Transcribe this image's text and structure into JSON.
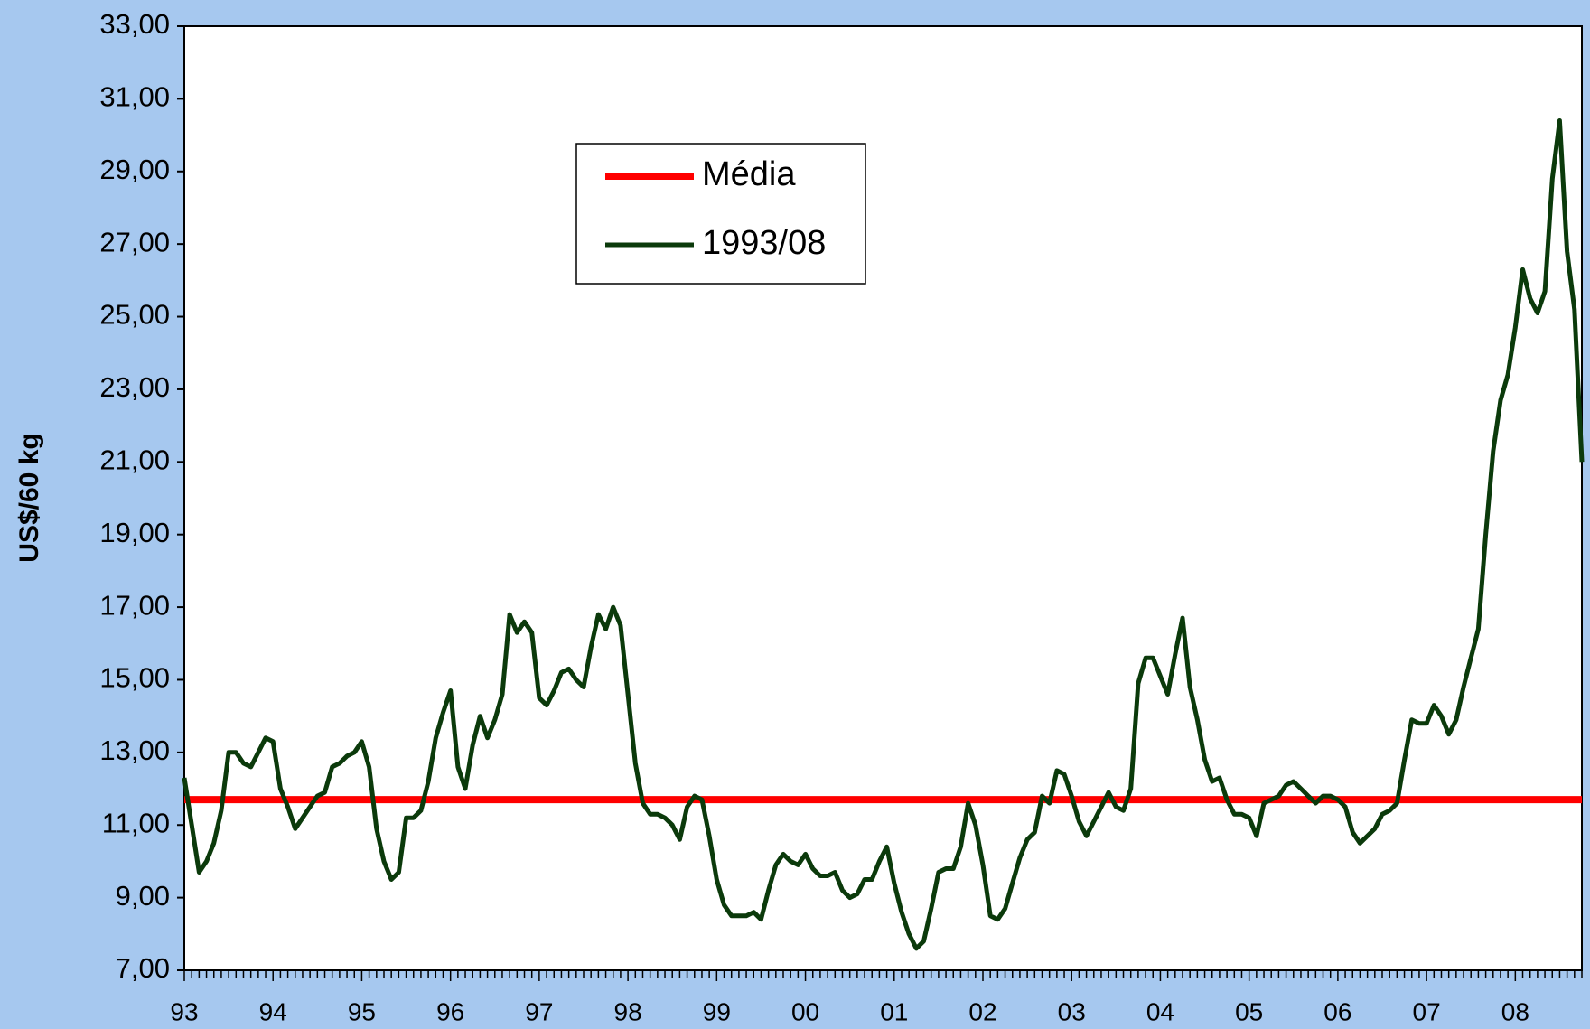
{
  "chart_data": {
    "type": "line",
    "y_label": "US$/60 kg",
    "categories": [
      "93",
      null,
      null,
      null,
      null,
      null,
      null,
      null,
      null,
      null,
      null,
      null,
      "94",
      null,
      null,
      null,
      null,
      null,
      null,
      null,
      null,
      null,
      null,
      null,
      "95",
      null,
      null,
      null,
      null,
      null,
      null,
      null,
      null,
      null,
      null,
      null,
      "96",
      null,
      null,
      null,
      null,
      null,
      null,
      null,
      null,
      null,
      null,
      null,
      "97",
      null,
      null,
      null,
      null,
      null,
      null,
      null,
      null,
      null,
      null,
      null,
      "98",
      null,
      null,
      null,
      null,
      null,
      null,
      null,
      null,
      null,
      null,
      null,
      "99",
      null,
      null,
      null,
      null,
      null,
      null,
      null,
      null,
      null,
      null,
      null,
      "00",
      null,
      null,
      null,
      null,
      null,
      null,
      null,
      null,
      null,
      null,
      null,
      "01",
      null,
      null,
      null,
      null,
      null,
      null,
      null,
      null,
      null,
      null,
      null,
      "02",
      null,
      null,
      null,
      null,
      null,
      null,
      null,
      null,
      null,
      null,
      null,
      "03",
      null,
      null,
      null,
      null,
      null,
      null,
      null,
      null,
      null,
      null,
      null,
      "04",
      null,
      null,
      null,
      null,
      null,
      null,
      null,
      null,
      null,
      null,
      null,
      "05",
      null,
      null,
      null,
      null,
      null,
      null,
      null,
      null,
      null,
      null,
      null,
      "06",
      null,
      null,
      null,
      null,
      null,
      null,
      null,
      null,
      null,
      null,
      null,
      "07",
      null,
      null,
      null,
      null,
      null,
      null,
      null,
      null,
      null,
      null,
      null,
      "08",
      null,
      null,
      null,
      null,
      null,
      null,
      null,
      null,
      null
    ],
    "series": [
      {
        "name": "1993/08",
        "color": "#0b3a0b",
        "values": [
          12.3,
          11.0,
          9.7,
          10.0,
          10.5,
          11.4,
          13.0,
          13.0,
          12.7,
          12.6,
          13.0,
          13.4,
          13.3,
          12.0,
          11.5,
          10.9,
          11.2,
          11.5,
          11.8,
          11.9,
          12.6,
          12.7,
          12.9,
          13.0,
          13.3,
          12.6,
          10.9,
          10.0,
          9.5,
          9.7,
          11.2,
          11.2,
          11.4,
          12.2,
          13.4,
          14.1,
          14.7,
          12.6,
          12.0,
          13.2,
          14.0,
          13.4,
          13.9,
          14.6,
          16.8,
          16.3,
          16.6,
          16.3,
          14.5,
          14.3,
          14.7,
          15.2,
          15.3,
          15.0,
          14.8,
          15.9,
          16.8,
          16.4,
          17.0,
          16.5,
          14.6,
          12.7,
          11.6,
          11.3,
          11.3,
          11.2,
          11.0,
          10.6,
          11.5,
          11.8,
          11.7,
          10.7,
          9.5,
          8.8,
          8.5,
          8.5,
          8.5,
          8.6,
          8.4,
          9.2,
          9.9,
          10.2,
          10.0,
          9.9,
          10.2,
          9.8,
          9.6,
          9.6,
          9.7,
          9.2,
          9.0,
          9.1,
          9.5,
          9.5,
          10.0,
          10.4,
          9.4,
          8.6,
          8.0,
          7.6,
          7.8,
          8.7,
          9.7,
          9.8,
          9.8,
          10.4,
          11.6,
          11.0,
          9.9,
          8.5,
          8.4,
          8.7,
          9.4,
          10.1,
          10.6,
          10.8,
          11.8,
          11.6,
          12.5,
          12.4,
          11.8,
          11.1,
          10.7,
          11.1,
          11.5,
          11.9,
          11.5,
          11.4,
          12.0,
          14.9,
          15.6,
          15.6,
          15.1,
          14.6,
          15.7,
          16.7,
          14.8,
          13.9,
          12.8,
          12.2,
          12.3,
          11.7,
          11.3,
          11.3,
          11.2,
          10.7,
          11.6,
          11.7,
          11.8,
          12.1,
          12.2,
          12.0,
          11.8,
          11.6,
          11.8,
          11.8,
          11.7,
          11.5,
          10.8,
          10.5,
          10.7,
          10.9,
          11.3,
          11.4,
          11.6,
          12.8,
          13.9,
          13.8,
          13.8,
          14.3,
          14.0,
          13.5,
          13.9,
          14.8,
          15.6,
          16.4,
          19.0,
          21.3,
          22.7,
          23.4,
          24.7,
          26.3,
          25.5,
          25.1,
          25.7,
          28.8,
          30.4,
          26.8,
          25.2,
          21.0
        ]
      }
    ],
    "hline": {
      "name": "Média",
      "color": "#ff0000",
      "value": 11.7
    },
    "ylim": [
      7,
      33
    ],
    "yticks": [
      {
        "value": 7,
        "label": "7,00"
      },
      {
        "value": 9,
        "label": "9,00"
      },
      {
        "value": 11,
        "label": "11,00"
      },
      {
        "value": 13,
        "label": "13,00"
      },
      {
        "value": 15,
        "label": "15,00"
      },
      {
        "value": 17,
        "label": "17,00"
      },
      {
        "value": 19,
        "label": "19,00"
      },
      {
        "value": 21,
        "label": "21,00"
      },
      {
        "value": 23,
        "label": "23,00"
      },
      {
        "value": 25,
        "label": "25,00"
      },
      {
        "value": 27,
        "label": "27,00"
      },
      {
        "value": 29,
        "label": "29,00"
      },
      {
        "value": 31,
        "label": "31,00"
      },
      {
        "value": 33,
        "label": "33,00"
      }
    ],
    "grid": false
  }
}
